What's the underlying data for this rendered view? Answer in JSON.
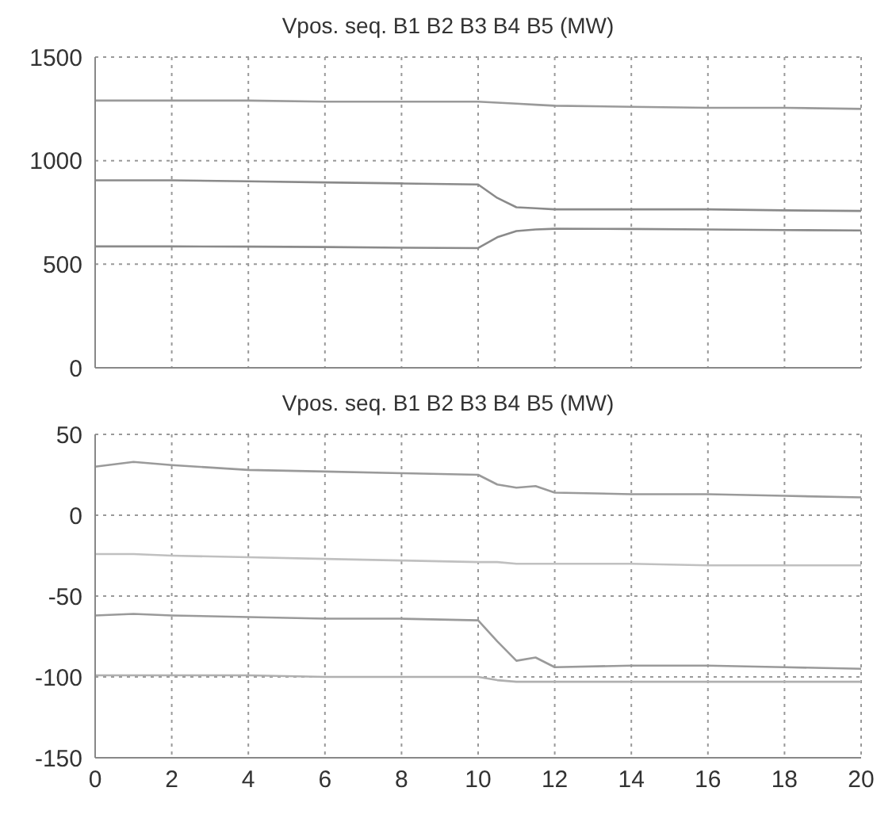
{
  "chart_data": [
    {
      "type": "line",
      "title": "Vpos. seq. B1 B2 B3 B4 B5 (MW)",
      "x": [
        0,
        2,
        4,
        6,
        8,
        10,
        10.5,
        11,
        11.5,
        12,
        14,
        16,
        18,
        20
      ],
      "series": [
        {
          "color": "#9a9a9a",
          "values": [
            1290,
            1290,
            1290,
            1285,
            1285,
            1285,
            1280,
            1275,
            1270,
            1265,
            1260,
            1255,
            1255,
            1250
          ]
        },
        {
          "color": "#8a8a8a",
          "values": [
            905,
            905,
            900,
            895,
            890,
            885,
            820,
            775,
            770,
            765,
            765,
            765,
            760,
            757
          ]
        },
        {
          "color": "#8a8a8a",
          "values": [
            586,
            586,
            585,
            583,
            580,
            578,
            630,
            660,
            668,
            671,
            670,
            668,
            665,
            663
          ]
        }
      ],
      "xlim": [
        0,
        20
      ],
      "xticks": [
        0,
        2,
        4,
        6,
        8,
        10,
        12,
        14,
        16,
        18,
        20
      ],
      "ylim": [
        0,
        1500
      ],
      "yticks": [
        0,
        500,
        1000,
        1500
      ],
      "grid": true,
      "line_style": "solid",
      "tick_labels": "y"
    },
    {
      "type": "line",
      "title": "Vpos. seq. B1 B2 B3 B4 B5 (MW)",
      "x": [
        0,
        1,
        2,
        4,
        6,
        8,
        10,
        10.5,
        11,
        11.5,
        12,
        14,
        16,
        18,
        20
      ],
      "series": [
        {
          "color": "#9a9a9a",
          "values": [
            30,
            33,
            31,
            28,
            27,
            26,
            25,
            19,
            17,
            18,
            14,
            13,
            13,
            12,
            11
          ]
        },
        {
          "color": "#c0c0c0",
          "values": [
            -24,
            -24,
            -25,
            -26,
            -27,
            -28,
            -29,
            -29,
            -30,
            -30,
            -30,
            -30,
            -31,
            -31,
            -31
          ]
        },
        {
          "color": "#9a9a9a",
          "values": [
            -62,
            -61,
            -62,
            -63,
            -64,
            -64,
            -65,
            -78,
            -90,
            -88,
            -94,
            -93,
            -93,
            -94,
            -95
          ]
        },
        {
          "color": "#b0b0b0",
          "values": [
            -99,
            -99,
            -99,
            -99,
            -100,
            -100,
            -100,
            -102,
            -103,
            -103,
            -103,
            -103,
            -103,
            -103,
            -103
          ]
        }
      ],
      "xlim": [
        0,
        20
      ],
      "xticks": [
        0,
        2,
        4,
        6,
        8,
        10,
        12,
        14,
        16,
        18,
        20
      ],
      "ylim": [
        -150,
        50
      ],
      "yticks": [
        -150,
        -100,
        -50,
        0,
        50
      ],
      "grid": true,
      "line_style": "solid"
    }
  ]
}
